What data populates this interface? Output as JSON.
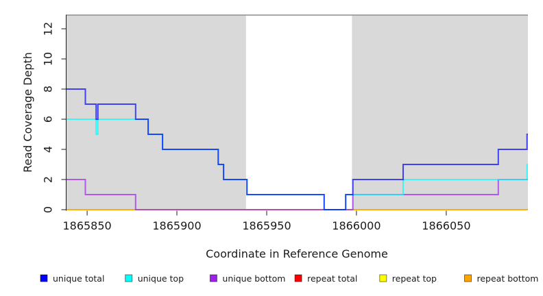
{
  "chart_data": {
    "type": "line",
    "subtype": "step",
    "title": "",
    "xlabel": "Coordinate in Reference Genome",
    "ylabel": "Read Coverage Depth",
    "xlim": [
      1865838.5,
      1866095.5
    ],
    "ylim": [
      0,
      12.95
    ],
    "x_ticks": [
      1865850,
      1865900,
      1865950,
      1866000,
      1866050
    ],
    "y_ticks": [
      0,
      2,
      4,
      6,
      8,
      10,
      12
    ],
    "grid": false,
    "legend_position": "bottom",
    "plot_background": "#ffffff",
    "band_gray": "#d9d9d9",
    "background_bands": [
      {
        "x0": 1865838.5,
        "x1": 1865938.5,
        "color": "#d9d9d9"
      },
      {
        "x0": 1865938.5,
        "x1": 1865997.5,
        "color": "#ffffff"
      },
      {
        "x0": 1865997.5,
        "x1": 1866095.5,
        "color": "#d9d9d9"
      }
    ],
    "series": [
      {
        "name": "unique total",
        "color": "#0000ff",
        "points": [
          [
            1865838.5,
            8
          ],
          [
            1865849,
            8
          ],
          [
            1865849,
            7
          ],
          [
            1865855,
            7
          ],
          [
            1865855,
            6
          ],
          [
            1865856,
            6
          ],
          [
            1865856,
            7
          ],
          [
            1865877,
            7
          ],
          [
            1865877,
            6
          ],
          [
            1865884,
            6
          ],
          [
            1865884,
            5
          ],
          [
            1865892,
            5
          ],
          [
            1865892,
            4
          ],
          [
            1865923,
            4
          ],
          [
            1865923,
            3
          ],
          [
            1865926,
            3
          ],
          [
            1865926,
            2
          ],
          [
            1865939,
            2
          ],
          [
            1865939,
            1
          ],
          [
            1865982,
            1
          ],
          [
            1865982,
            0
          ],
          [
            1865994,
            0
          ],
          [
            1865994,
            1
          ],
          [
            1865998,
            1
          ],
          [
            1865998,
            2
          ],
          [
            1866026,
            2
          ],
          [
            1866026,
            3
          ],
          [
            1866079,
            3
          ],
          [
            1866079,
            4
          ],
          [
            1866095,
            4
          ],
          [
            1866095,
            5
          ],
          [
            1866095.5,
            5
          ]
        ]
      },
      {
        "name": "unique top",
        "color": "#00ffff",
        "points": [
          [
            1865838.5,
            6
          ],
          [
            1865855,
            6
          ],
          [
            1865855,
            5
          ],
          [
            1865856,
            5
          ],
          [
            1865856,
            6
          ],
          [
            1865884,
            6
          ],
          [
            1865884,
            5
          ],
          [
            1865892,
            5
          ],
          [
            1865892,
            4
          ],
          [
            1865923,
            4
          ],
          [
            1865923,
            3
          ],
          [
            1865926,
            3
          ],
          [
            1865926,
            2
          ],
          [
            1865939,
            2
          ],
          [
            1865939,
            1
          ],
          [
            1865982,
            1
          ],
          [
            1865982,
            0
          ],
          [
            1865994,
            0
          ],
          [
            1865994,
            1
          ],
          [
            1866026,
            1
          ],
          [
            1866026,
            2
          ],
          [
            1866095,
            2
          ],
          [
            1866095,
            3
          ],
          [
            1866095.5,
            3
          ]
        ]
      },
      {
        "name": "unique bottom",
        "color": "#a020f0",
        "points": [
          [
            1865838.5,
            2
          ],
          [
            1865849,
            2
          ],
          [
            1865849,
            1
          ],
          [
            1865877,
            1
          ],
          [
            1865877,
            0
          ],
          [
            1865998,
            0
          ],
          [
            1865998,
            1
          ],
          [
            1866079,
            1
          ],
          [
            1866079,
            2
          ],
          [
            1866095.5,
            2
          ]
        ]
      },
      {
        "name": "repeat total",
        "color": "#ff0000",
        "points": [
          [
            1865838.5,
            0
          ],
          [
            1866095.5,
            0
          ]
        ]
      },
      {
        "name": "repeat top",
        "color": "#ffff00",
        "points": [
          [
            1865838.5,
            0
          ],
          [
            1866095.5,
            0
          ]
        ]
      },
      {
        "name": "repeat bottom",
        "color": "#ffa500",
        "points": [
          [
            1865838.5,
            0
          ],
          [
            1866095.5,
            0
          ]
        ]
      }
    ],
    "draw_order": [
      3,
      4,
      5,
      2,
      1,
      0
    ],
    "line_opacity": 0.7
  }
}
